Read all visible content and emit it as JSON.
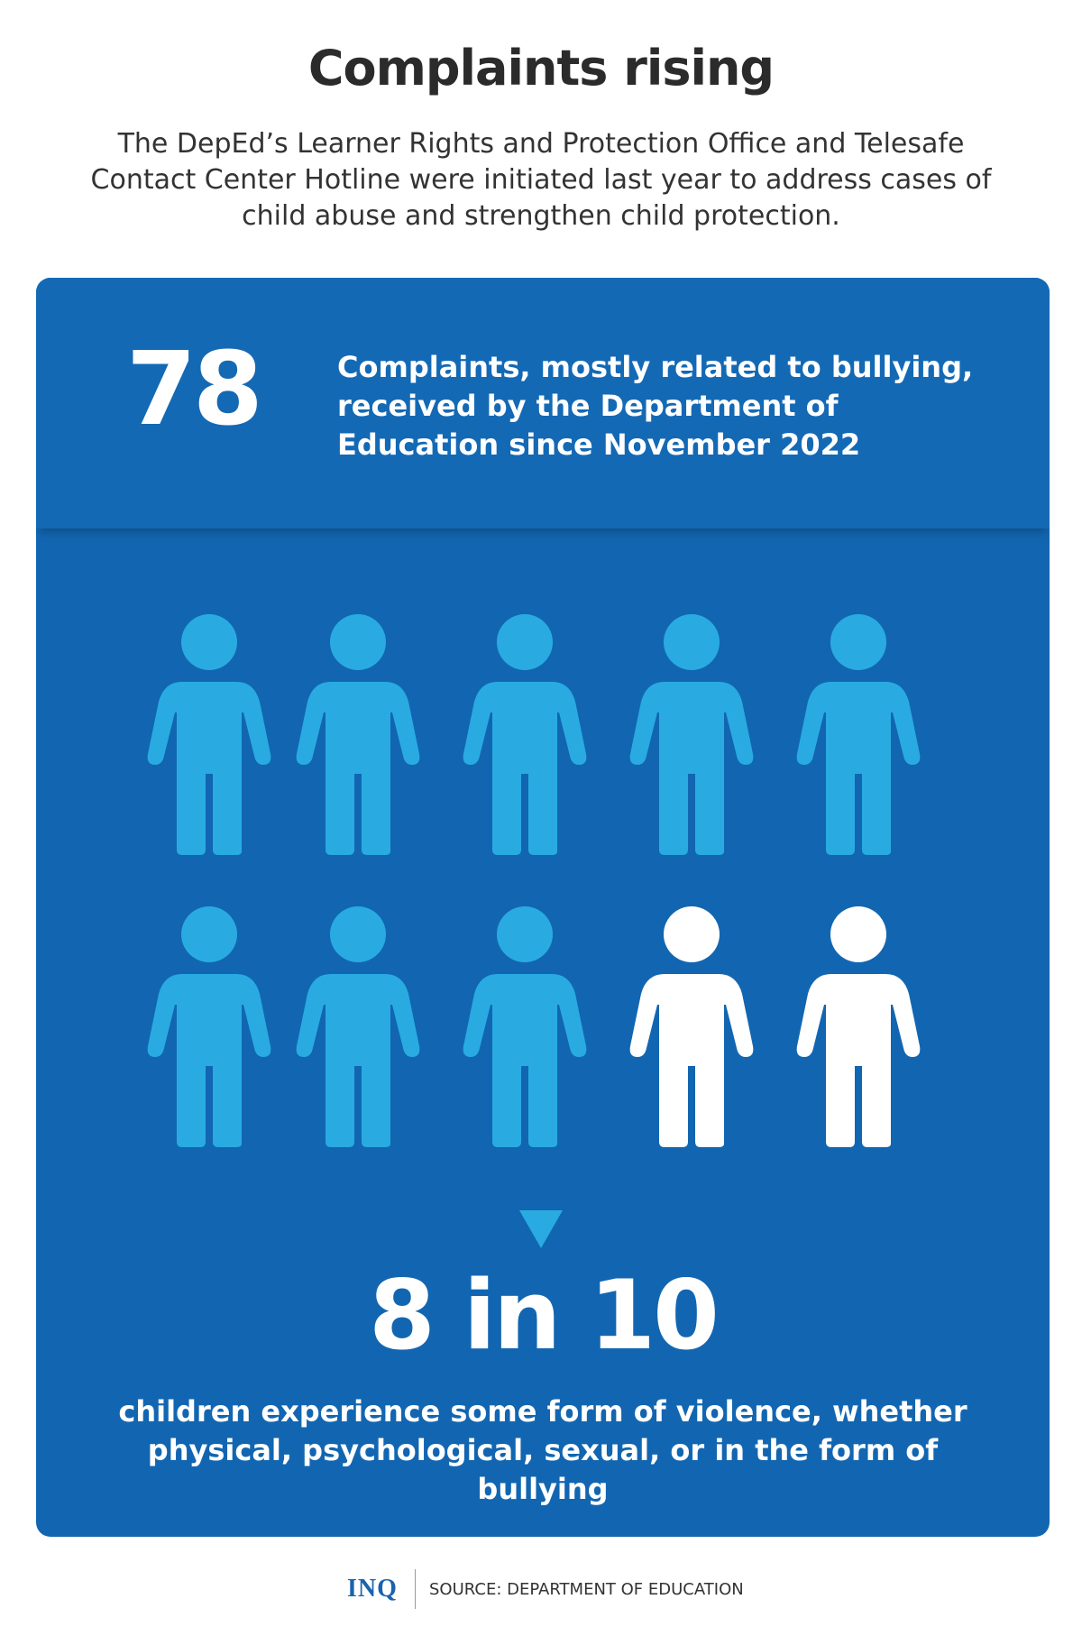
{
  "header": {
    "title": "Complaints rising",
    "intro": "The DepEd’s Learner Rights and Protection Office and Telesafe Contact Center Hotline were initiated last year to address cases of child abuse and strengthen child protection."
  },
  "stat_complaints": {
    "value": "78",
    "description": "Complaints, mostly related to bullying, received by the Department of Education since November 2022"
  },
  "pictogram": {
    "total_figures": 10,
    "highlighted_figures": 8,
    "colors": {
      "highlighted": "#29abe2",
      "other": "#ffffff",
      "panel": "#1266b1"
    },
    "icon": "child-figure-icon"
  },
  "stat_violence": {
    "value": "8 in 10",
    "description": "children experience some form of violence, whether physical, psychological, sexual, or in the form of bullying"
  },
  "footer": {
    "logo": "INQ",
    "source": "SOURCE: DEPARTMENT OF EDUCATION"
  }
}
